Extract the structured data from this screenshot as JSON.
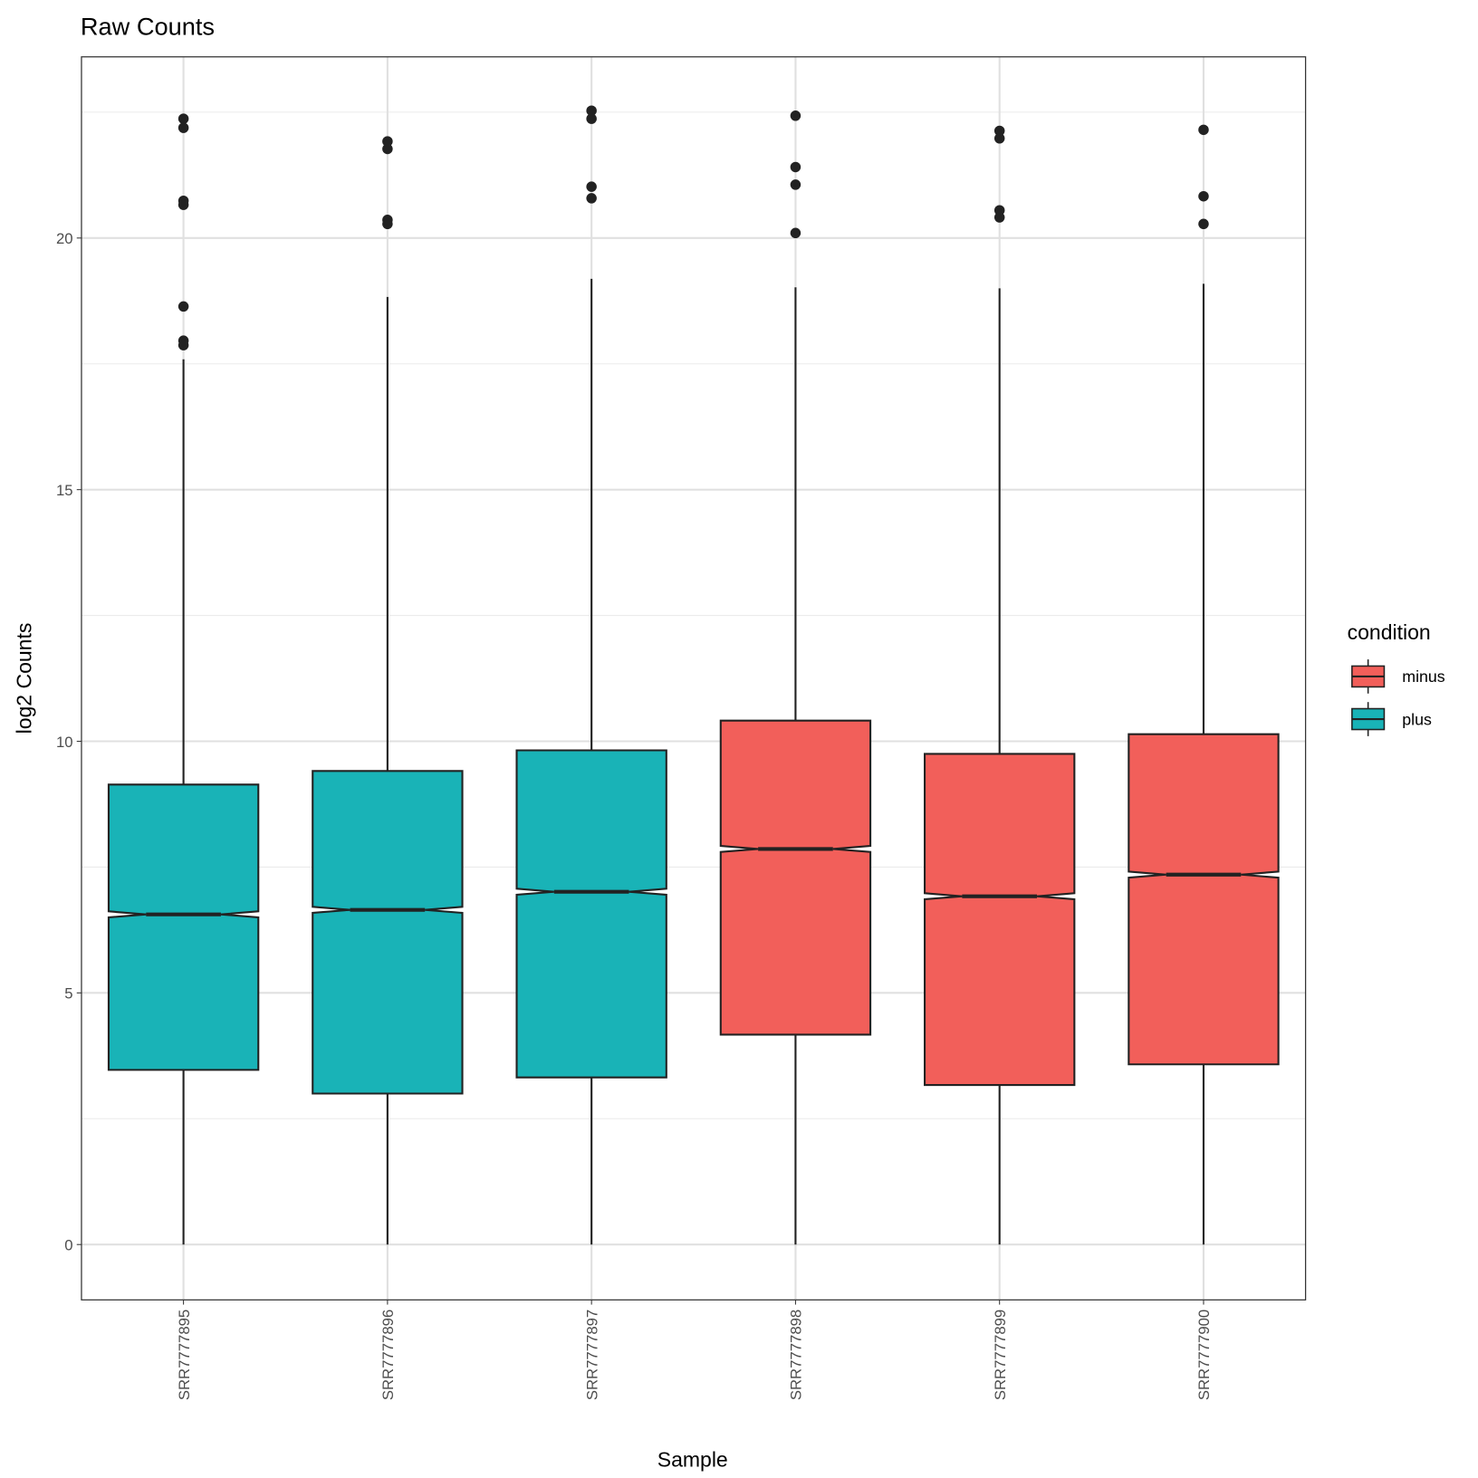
{
  "chart_data": {
    "type": "boxplot",
    "title": "Raw Counts",
    "xlabel": "Sample",
    "ylabel": "log2 Counts",
    "ylim": [
      -1.1,
      23.6
    ],
    "yticks": [
      0,
      5,
      10,
      15,
      20
    ],
    "ytick_labels": [
      "0",
      "5",
      "10",
      "15",
      "20"
    ],
    "grid": true,
    "notched": true,
    "legend": {
      "title": "condition",
      "position": "right",
      "entries": [
        {
          "label": "minus",
          "color": "#F25F5A"
        },
        {
          "label": "plus",
          "color": "#19B3B7"
        }
      ]
    },
    "categories": [
      "SRR7777895",
      "SRR7777896",
      "SRR7777897",
      "SRR7777898",
      "SRR7777899",
      "SRR7777900"
    ],
    "boxes": [
      {
        "sample": "SRR7777895",
        "condition": "plus",
        "lower_whisker": 0,
        "q1": 3.47,
        "median": 6.56,
        "q3": 9.14,
        "upper_whisker": 17.59,
        "outliers": [
          22.37,
          22.19,
          20.74,
          20.66,
          18.64,
          17.96,
          17.87
        ]
      },
      {
        "sample": "SRR7777896",
        "condition": "plus",
        "lower_whisker": 0,
        "q1": 3.0,
        "median": 6.65,
        "q3": 9.41,
        "upper_whisker": 18.83,
        "outliers": [
          21.92,
          21.77,
          20.36,
          20.28
        ]
      },
      {
        "sample": "SRR7777897",
        "condition": "plus",
        "lower_whisker": 0,
        "q1": 3.32,
        "median": 7.01,
        "q3": 9.82,
        "upper_whisker": 19.19,
        "outliers": [
          22.53,
          22.37,
          21.02,
          20.79
        ]
      },
      {
        "sample": "SRR7777898",
        "condition": "minus",
        "lower_whisker": 0,
        "q1": 4.17,
        "median": 7.86,
        "q3": 10.41,
        "upper_whisker": 19.02,
        "outliers": [
          22.43,
          21.41,
          21.06,
          20.1
        ]
      },
      {
        "sample": "SRR7777899",
        "condition": "minus",
        "lower_whisker": 0,
        "q1": 3.17,
        "median": 6.92,
        "q3": 9.75,
        "upper_whisker": 19.0,
        "outliers": [
          22.13,
          21.98,
          20.55,
          20.41
        ]
      },
      {
        "sample": "SRR7777900",
        "condition": "minus",
        "lower_whisker": 0,
        "q1": 3.58,
        "median": 7.35,
        "q3": 10.14,
        "upper_whisker": 19.09,
        "outliers": [
          22.15,
          20.83,
          20.28
        ]
      }
    ]
  }
}
